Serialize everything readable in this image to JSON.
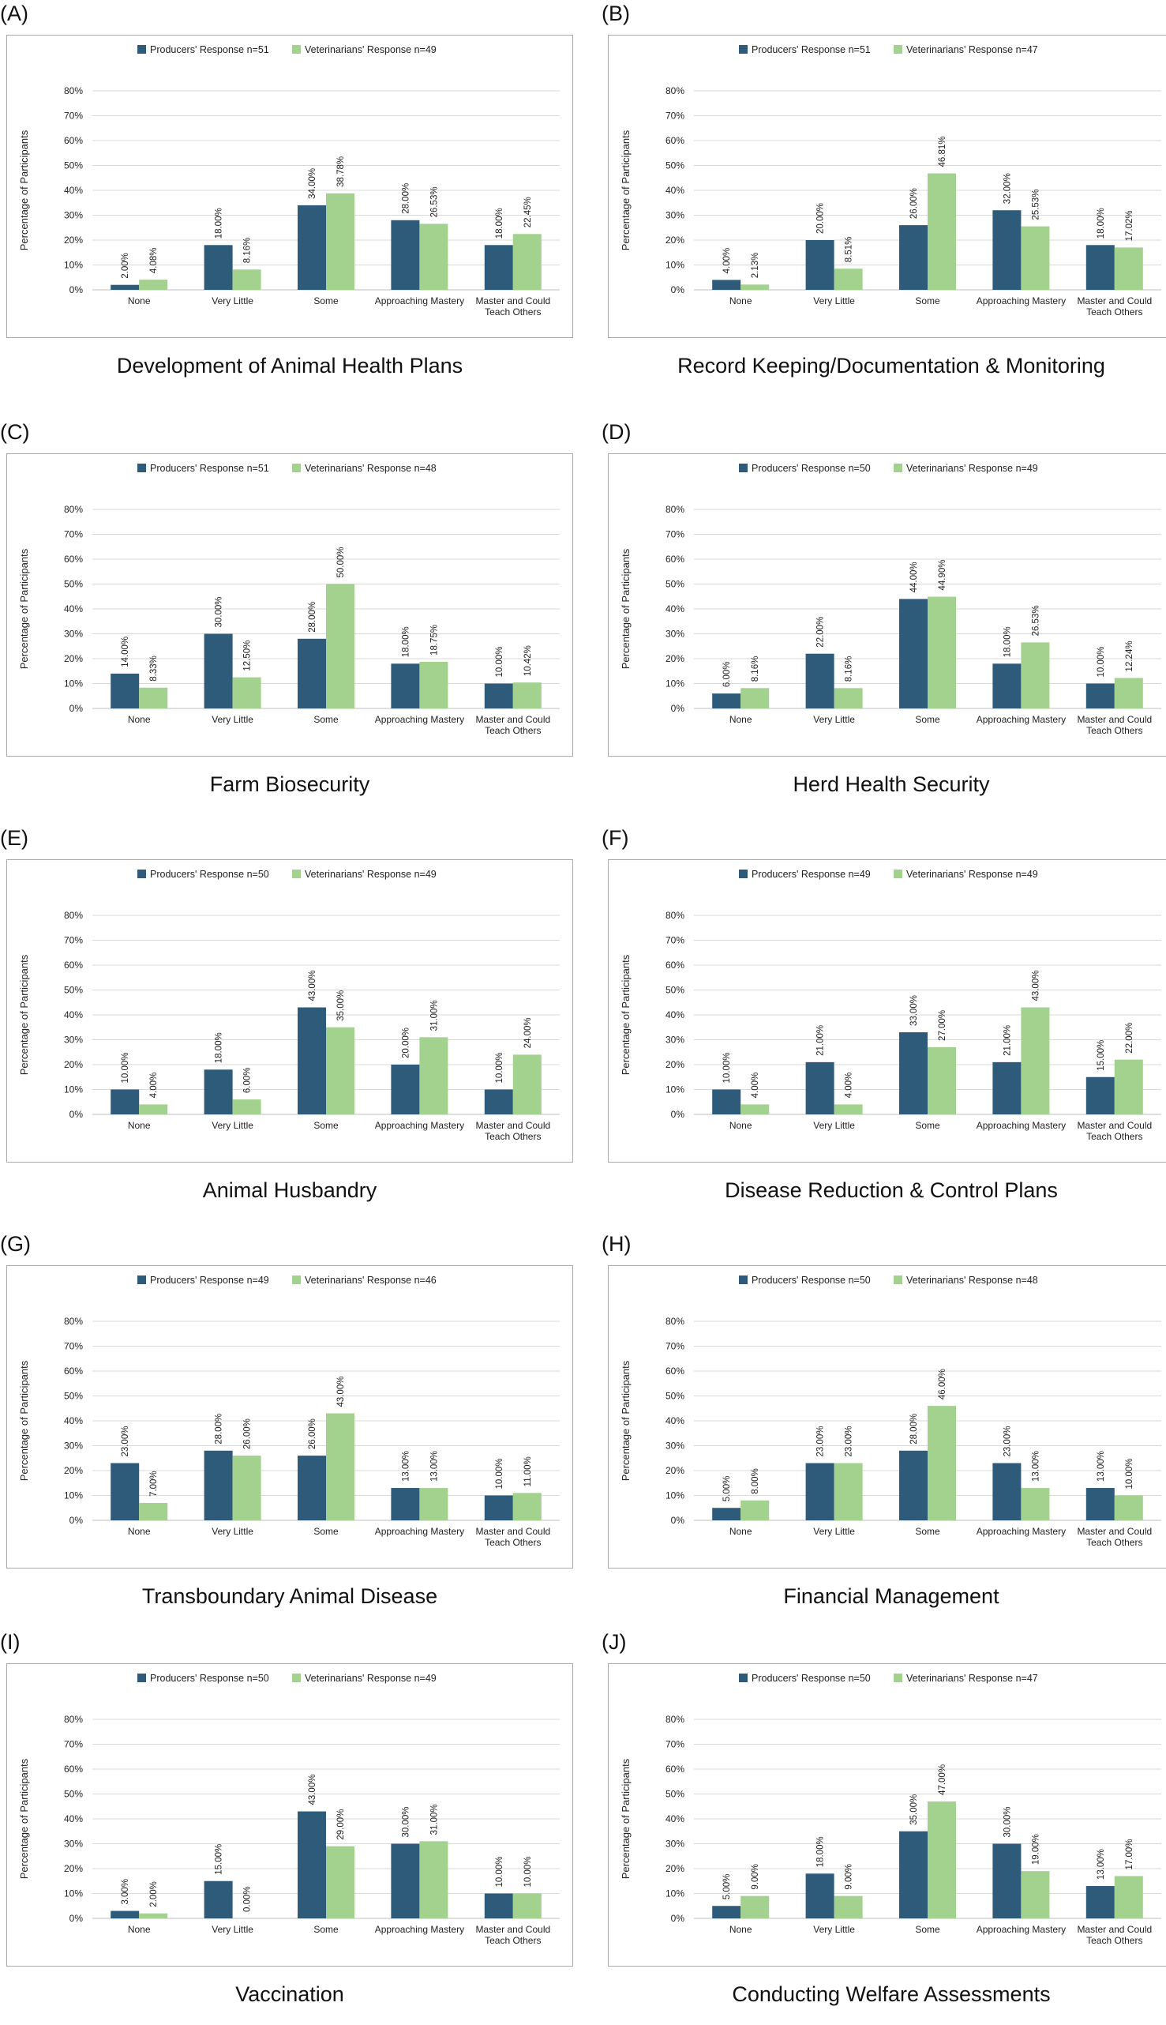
{
  "colors": {
    "producers": "#2e5b7a",
    "veterinarians": "#a3d18e",
    "grid": "#d9d9d9",
    "axis": "#bfbfbf"
  },
  "chart_data": [
    {
      "type": "bar",
      "panel": "(A)",
      "title": "Development of Animal Health Plans",
      "ylabel": "Percentage of Participants",
      "ylim": [
        0,
        80
      ],
      "yticks": [
        "0%",
        "10%",
        "20%",
        "30%",
        "40%",
        "50%",
        "60%",
        "70%",
        "80%"
      ],
      "categories": [
        "None",
        "Very Little",
        "Some",
        "Approaching Mastery",
        "Master and Could Teach Others"
      ],
      "series": [
        {
          "name": "Producers' Response",
          "n": "n=51",
          "values": [
            2,
            18,
            34,
            28,
            18
          ],
          "labels": [
            "2.00%",
            "18.00%",
            "34.00%",
            "28.00%",
            "18.00%"
          ]
        },
        {
          "name": "Veterinarians' Response",
          "n": "n=49",
          "values": [
            4.08,
            8.16,
            38.78,
            26.53,
            22.45
          ],
          "labels": [
            "4.08%",
            "8.16%",
            "38.78%",
            "26.53%",
            "22.45%"
          ]
        }
      ]
    },
    {
      "type": "bar",
      "panel": "(B)",
      "title": "Record Keeping/Documentation & Monitoring",
      "ylabel": "Percentage of Participants",
      "ylim": [
        0,
        80
      ],
      "yticks": [
        "0%",
        "10%",
        "20%",
        "30%",
        "40%",
        "50%",
        "60%",
        "70%",
        "80%"
      ],
      "categories": [
        "None",
        "Very Little",
        "Some",
        "Approaching Mastery",
        "Master and Could Teach Others"
      ],
      "series": [
        {
          "name": "Producers' Response",
          "n": "n=51",
          "values": [
            4,
            20,
            26,
            32,
            18
          ],
          "labels": [
            "4.00%",
            "20.00%",
            "26.00%",
            "32.00%",
            "18.00%"
          ]
        },
        {
          "name": "Veterinarians' Response",
          "n": "n=47",
          "values": [
            2.13,
            8.51,
            46.81,
            25.53,
            17.02
          ],
          "labels": [
            "2.13%",
            "8.51%",
            "46.81%",
            "25.53%",
            "17.02%"
          ]
        }
      ]
    },
    {
      "type": "bar",
      "panel": "(C)",
      "title": "Farm Biosecurity",
      "ylabel": "Percentage of Participants",
      "ylim": [
        0,
        80
      ],
      "yticks": [
        "0%",
        "10%",
        "20%",
        "30%",
        "40%",
        "50%",
        "60%",
        "70%",
        "80%"
      ],
      "categories": [
        "None",
        "Very Little",
        "Some",
        "Approaching Mastery",
        "Master and Could Teach Others"
      ],
      "series": [
        {
          "name": "Producers' Response",
          "n": "n=51",
          "values": [
            14,
            30,
            28,
            18,
            10
          ],
          "labels": [
            "14.00%",
            "30.00%",
            "28.00%",
            "18.00%",
            "10.00%"
          ]
        },
        {
          "name": "Veterinarians' Response",
          "n": "n=48",
          "values": [
            8.33,
            12.5,
            50,
            18.75,
            10.42
          ],
          "labels": [
            "8.33%",
            "12.50%",
            "50.00%",
            "18.75%",
            "10.42%"
          ]
        }
      ]
    },
    {
      "type": "bar",
      "panel": "(D)",
      "title": "Herd Health Security",
      "ylabel": "Percentage of Participants",
      "ylim": [
        0,
        80
      ],
      "yticks": [
        "0%",
        "10%",
        "20%",
        "30%",
        "40%",
        "50%",
        "60%",
        "70%",
        "80%"
      ],
      "categories": [
        "None",
        "Very Little",
        "Some",
        "Approaching Mastery",
        "Master and Could Teach Others"
      ],
      "series": [
        {
          "name": "Producers' Response",
          "n": "n=50",
          "values": [
            6,
            22,
            44,
            18,
            10
          ],
          "labels": [
            "6.00%",
            "22.00%",
            "44.00%",
            "18.00%",
            "10.00%"
          ]
        },
        {
          "name": "Veterinarians' Response",
          "n": "n=49",
          "values": [
            8.16,
            8.16,
            44.9,
            26.53,
            12.24
          ],
          "labels": [
            "8.16%",
            "8.16%",
            "44.90%",
            "26.53%",
            "12.24%"
          ]
        }
      ]
    },
    {
      "type": "bar",
      "panel": "(E)",
      "title": "Animal Husbandry",
      "ylabel": "Percentage of Participants",
      "ylim": [
        0,
        80
      ],
      "yticks": [
        "0%",
        "10%",
        "20%",
        "30%",
        "40%",
        "50%",
        "60%",
        "70%",
        "80%"
      ],
      "categories": [
        "None",
        "Very Little",
        "Some",
        "Approaching Mastery",
        "Master and Could Teach Others"
      ],
      "series": [
        {
          "name": "Producers' Response",
          "n": "n=50",
          "values": [
            10,
            18,
            43,
            20,
            10
          ],
          "labels": [
            "10.00%",
            "18.00%",
            "43.00%",
            "20.00%",
            "10.00%"
          ]
        },
        {
          "name": "Veterinarians' Response",
          "n": "n=49",
          "values": [
            4,
            6,
            35,
            31,
            24
          ],
          "labels": [
            "4.00%",
            "6.00%",
            "35.00%",
            "31.00%",
            "24.00%"
          ]
        }
      ]
    },
    {
      "type": "bar",
      "panel": "(F)",
      "title": "Disease Reduction & Control Plans",
      "ylabel": "Percentage of Participants",
      "ylim": [
        0,
        80
      ],
      "yticks": [
        "0%",
        "10%",
        "20%",
        "30%",
        "40%",
        "50%",
        "60%",
        "70%",
        "80%"
      ],
      "categories": [
        "None",
        "Very Little",
        "Some",
        "Approaching Mastery",
        "Master and Could Teach Others"
      ],
      "series": [
        {
          "name": "Producers' Response",
          "n": "n=49",
          "values": [
            10,
            21,
            33,
            21,
            15
          ],
          "labels": [
            "10.00%",
            "21.00%",
            "33.00%",
            "21.00%",
            "15.00%"
          ]
        },
        {
          "name": "Veterinarians' Response",
          "n": "n=49",
          "values": [
            4,
            4,
            27,
            43,
            22
          ],
          "labels": [
            "4.00%",
            "4.00%",
            "27.00%",
            "43.00%",
            "22.00%"
          ]
        }
      ]
    },
    {
      "type": "bar",
      "panel": "(G)",
      "title": "Transboundary Animal Disease",
      "ylabel": "Percentage of Participants",
      "ylim": [
        0,
        80
      ],
      "yticks": [
        "0%",
        "10%",
        "20%",
        "30%",
        "40%",
        "50%",
        "60%",
        "70%",
        "80%"
      ],
      "categories": [
        "None",
        "Very Little",
        "Some",
        "Approaching Mastery",
        "Master and Could Teach Others"
      ],
      "series": [
        {
          "name": "Producers' Response",
          "n": "n=49",
          "values": [
            23,
            28,
            26,
            13,
            10
          ],
          "labels": [
            "23.00%",
            "28.00%",
            "26.00%",
            "13.00%",
            "10.00%"
          ]
        },
        {
          "name": "Veterinarians' Response",
          "n": "n=46",
          "values": [
            7,
            26,
            43,
            13,
            11
          ],
          "labels": [
            "7.00%",
            "26.00%",
            "43.00%",
            "13.00%",
            "11.00%"
          ]
        }
      ]
    },
    {
      "type": "bar",
      "panel": "(H)",
      "title": "Financial Management",
      "ylabel": "Percentage of Participants",
      "ylim": [
        0,
        80
      ],
      "yticks": [
        "0%",
        "10%",
        "20%",
        "30%",
        "40%",
        "50%",
        "60%",
        "70%",
        "80%"
      ],
      "categories": [
        "None",
        "Very Little",
        "Some",
        "Approaching Mastery",
        "Master and Could Teach Others"
      ],
      "series": [
        {
          "name": "Producers' Response",
          "n": "n=50",
          "values": [
            5,
            23,
            28,
            23,
            13
          ],
          "labels": [
            "5.00%",
            "23.00%",
            "28.00%",
            "23.00%",
            "13.00%"
          ]
        },
        {
          "name": "Veterinarians' Response",
          "n": "n=48",
          "values": [
            8,
            23,
            46,
            13,
            10
          ],
          "labels": [
            "8.00%",
            "23.00%",
            "46.00%",
            "13.00%",
            "10.00%"
          ]
        }
      ]
    },
    {
      "type": "bar",
      "panel": "(I)",
      "title": "Vaccination",
      "ylabel": "Percentage of Participants",
      "ylim": [
        0,
        80
      ],
      "yticks": [
        "0%",
        "10%",
        "20%",
        "30%",
        "40%",
        "50%",
        "60%",
        "70%",
        "80%"
      ],
      "categories": [
        "None",
        "Very Little",
        "Some",
        "Approaching Mastery",
        "Master and Could Teach Others"
      ],
      "series": [
        {
          "name": "Producers' Response",
          "n": "n=50",
          "values": [
            3,
            15,
            43,
            30,
            10
          ],
          "labels": [
            "3.00%",
            "15.00%",
            "43.00%",
            "30.00%",
            "10.00%"
          ]
        },
        {
          "name": "Veterinarians' Response",
          "n": "n=49",
          "values": [
            2,
            0,
            29,
            31,
            10
          ],
          "labels": [
            "2.00%",
            "0.00%",
            "29.00%",
            "31.00%",
            "10.00%"
          ]
        }
      ]
    },
    {
      "type": "bar",
      "panel": "(J)",
      "title": "Conducting Welfare Assessments",
      "ylabel": "Percentage of Participants",
      "ylim": [
        0,
        80
      ],
      "yticks": [
        "0%",
        "10%",
        "20%",
        "30%",
        "40%",
        "50%",
        "60%",
        "70%",
        "80%"
      ],
      "categories": [
        "None",
        "Very Little",
        "Some",
        "Approaching Mastery",
        "Master and Could Teach Others"
      ],
      "series": [
        {
          "name": "Producers' Response",
          "n": "n=50",
          "values": [
            5,
            18,
            35,
            30,
            13
          ],
          "labels": [
            "5.00%",
            "18.00%",
            "35.00%",
            "30.00%",
            "13.00%"
          ]
        },
        {
          "name": "Veterinarians' Response",
          "n": "n=47",
          "values": [
            9,
            9,
            47,
            19,
            17
          ],
          "labels": [
            "9.00%",
            "9.00%",
            "47.00%",
            "19.00%",
            "17.00%"
          ]
        }
      ]
    }
  ]
}
